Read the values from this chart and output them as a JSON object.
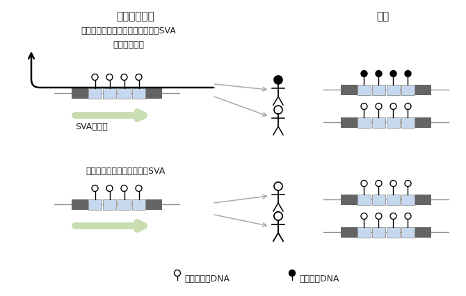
{
  "title_left": "始原生殖細胞",
  "title_right": "精子",
  "label_top": "転写領域に逆向きに挿入しているSVA",
  "label_gene_dir": "遺伝子の向き",
  "label_sva_dir": "SVAの向き",
  "label_bottom": "非転写領域に挿入しているSVA",
  "legend_unmeth": "非メチル化DNA",
  "legend_meth": "メチル化DNA",
  "bg_color": "#ffffff",
  "gray_dark": "#646464",
  "gray_mid": "#909090",
  "gray_light": "#aaaaaa",
  "blue_light": "#c5d8ee",
  "green_arrow": "#c8ddb0",
  "text_color": "#222222",
  "black": "#000000"
}
